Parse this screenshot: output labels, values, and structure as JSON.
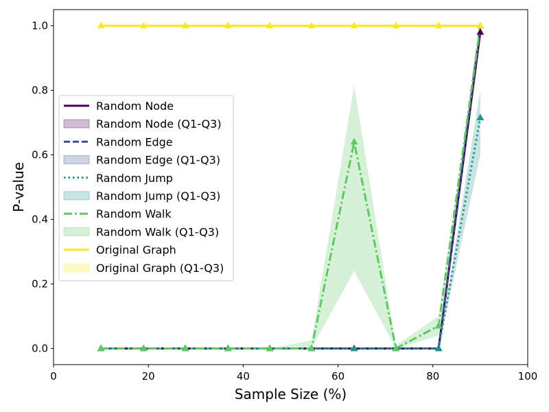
{
  "chart_data": {
    "type": "line",
    "title": "",
    "xlabel": "Sample Size (%)",
    "ylabel": "P-value",
    "xlim": [
      0,
      100
    ],
    "ylim": [
      -0.05,
      1.05
    ],
    "x_ticks": [
      "0",
      "20",
      "40",
      "60",
      "80",
      "100"
    ],
    "y_ticks": [
      "0.0",
      "0.2",
      "0.4",
      "0.6",
      "0.8",
      "1.0"
    ],
    "grid": false,
    "legend_position": "center-left",
    "x": [
      10,
      19,
      27.8,
      36.8,
      45.6,
      54.4,
      63.4,
      72.2,
      81.2,
      90
    ],
    "series": [
      {
        "name": "Random Node",
        "band_name": "Random Node (Q1-Q3)",
        "color": "#440154",
        "dash": "solid",
        "values": [
          0,
          0,
          0,
          0,
          0,
          0,
          0,
          0,
          0,
          0.98
        ],
        "q1": [
          0,
          0,
          0,
          0,
          0,
          0,
          0,
          0,
          0,
          0.97
        ],
        "q3": [
          0,
          0,
          0,
          0,
          0,
          0,
          0,
          0,
          0,
          0.99
        ]
      },
      {
        "name": "Random Edge",
        "band_name": "Random Edge (Q1-Q3)",
        "color": "#3b528b",
        "dash": "dashed",
        "values": [
          0,
          0,
          0,
          0,
          0,
          0,
          0,
          0,
          0,
          1.0
        ],
        "q1": [
          0,
          0,
          0,
          0,
          0,
          0,
          0,
          0,
          0,
          0.99
        ],
        "q3": [
          0,
          0,
          0,
          0,
          0,
          0,
          0,
          0,
          0,
          1.0
        ]
      },
      {
        "name": "Random Jump",
        "band_name": "Random Jump (Q1-Q3)",
        "color": "#21918c",
        "dash": "dotted",
        "values": [
          0,
          0,
          0,
          0,
          0,
          0,
          0,
          0,
          0,
          0.715
        ],
        "q1": [
          0,
          0,
          0,
          0,
          0,
          0,
          0,
          0,
          0,
          0.6
        ],
        "q3": [
          0,
          0,
          0,
          0,
          0,
          0,
          0,
          0,
          0,
          0.8
        ]
      },
      {
        "name": "Random Walk",
        "band_name": "Random Walk (Q1-Q3)",
        "color": "#5ec962",
        "dash": "dashdot",
        "values": [
          0,
          0,
          0,
          0,
          0,
          0,
          0.64,
          0,
          0.07,
          1.0
        ],
        "q1": [
          0,
          0,
          0,
          0,
          0,
          0,
          0.24,
          0,
          0.04,
          0.99
        ],
        "q3": [
          0,
          0,
          0,
          0,
          0,
          0.025,
          0.815,
          0.01,
          0.1,
          1.0
        ]
      },
      {
        "name": "Original Graph",
        "band_name": "Original Graph (Q1-Q3)",
        "color": "#fde725",
        "dash": "solid",
        "values": [
          1,
          1,
          1,
          1,
          1,
          1,
          1,
          1,
          1,
          1
        ],
        "q1": [
          1,
          1,
          1,
          1,
          1,
          1,
          1,
          1,
          1,
          1
        ],
        "q3": [
          1,
          1,
          1,
          1,
          1,
          1,
          1,
          1,
          1,
          1
        ]
      }
    ]
  }
}
